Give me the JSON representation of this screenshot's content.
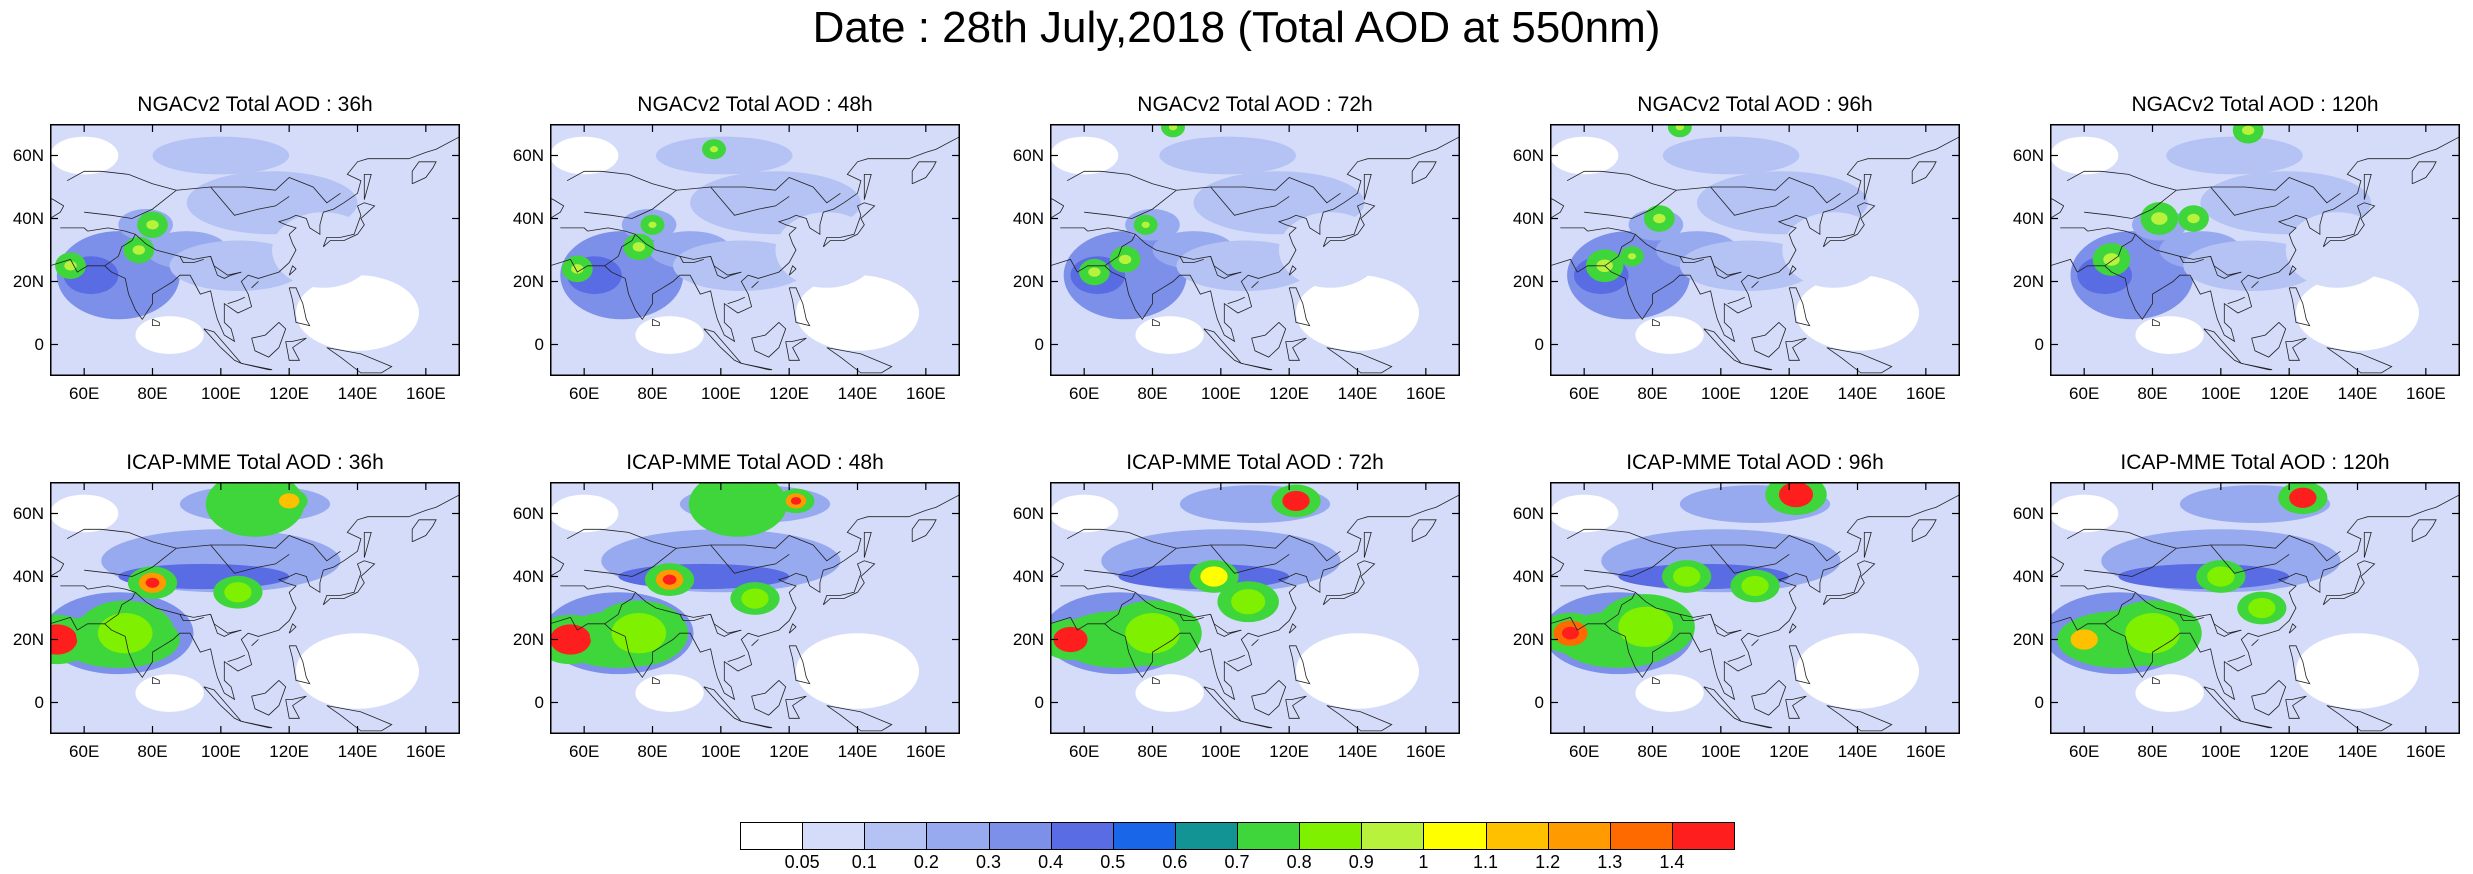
{
  "title": "Date : 28th July,2018 (Total AOD at 550nm)",
  "x_ticks": [
    "60E",
    "80E",
    "100E",
    "120E",
    "140E",
    "160E"
  ],
  "y_ticks": [
    "60N",
    "40N",
    "20N",
    "0"
  ],
  "panels": [
    {
      "title": "NGACv2 Total AOD : 36h",
      "model": "NGACv2",
      "lead": "36h"
    },
    {
      "title": "NGACv2 Total AOD : 48h",
      "model": "NGACv2",
      "lead": "48h"
    },
    {
      "title": "NGACv2 Total AOD : 72h",
      "model": "NGACv2",
      "lead": "72h"
    },
    {
      "title": "NGACv2 Total AOD : 96h",
      "model": "NGACv2",
      "lead": "96h"
    },
    {
      "title": "NGACv2 Total AOD : 120h",
      "model": "NGACv2",
      "lead": "120h"
    },
    {
      "title": "ICAP-MME Total AOD : 36h",
      "model": "ICAP-MME",
      "lead": "36h"
    },
    {
      "title": "ICAP-MME Total AOD : 48h",
      "model": "ICAP-MME",
      "lead": "48h"
    },
    {
      "title": "ICAP-MME Total AOD : 72h",
      "model": "ICAP-MME",
      "lead": "72h"
    },
    {
      "title": "ICAP-MME Total AOD : 96h",
      "model": "ICAP-MME",
      "lead": "96h"
    },
    {
      "title": "ICAP-MME Total AOD : 120h",
      "model": "ICAP-MME",
      "lead": "120h"
    }
  ],
  "colorbar": {
    "labels": [
      "0.05",
      "0.1",
      "0.2",
      "0.3",
      "0.4",
      "0.5",
      "0.6",
      "0.7",
      "0.8",
      "0.9",
      "1",
      "1.1",
      "1.2",
      "1.3",
      "1.4"
    ],
    "colors": [
      "#ffffff",
      "#d4dcfa",
      "#b5c2f4",
      "#98aaef",
      "#7c90ea",
      "#5a6ce3",
      "#1a66e8",
      "#139494",
      "#3ed63a",
      "#7ff000",
      "#b8f23c",
      "#ffff00",
      "#ffc000",
      "#ff9a00",
      "#ff6a00",
      "#ff1e1e"
    ]
  },
  "map": {
    "lon_range": [
      50,
      170
    ],
    "lat_range": [
      -10,
      70
    ]
  }
}
